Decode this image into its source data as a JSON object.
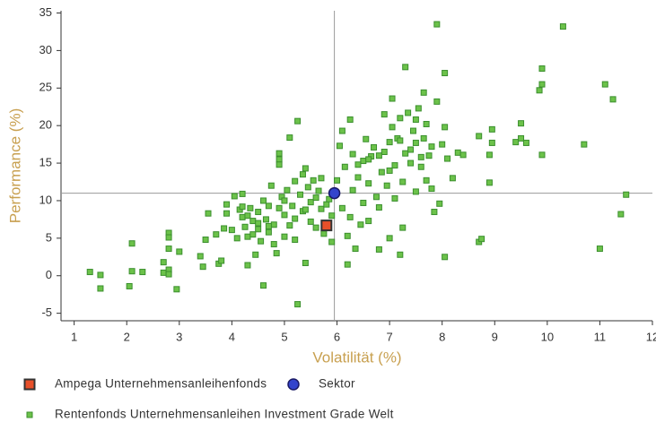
{
  "chart_data": {
    "type": "scatter",
    "x_label": "Volatilität (%)",
    "y_label": "Performance (%)",
    "xlim": [
      0.75,
      12
    ],
    "ylim": [
      -6,
      35.3
    ],
    "xticks": [
      1,
      2,
      3,
      4,
      5,
      6,
      7,
      8,
      9,
      10,
      11,
      12
    ],
    "yticks": [
      -5,
      0,
      5,
      10,
      15,
      20,
      25,
      30,
      35
    ],
    "series": [
      {
        "name": "Ampega Unternehmensanleihenfonds",
        "color": "#e8502a",
        "marker": "square",
        "x": [
          5.8
        ],
        "values": [
          6.7
        ]
      },
      {
        "name": "Sektor",
        "color": "#3344cc",
        "marker": "circle",
        "x": [
          5.95
        ],
        "values": [
          11.0
        ]
      },
      {
        "name": "Rentenfonds Unternehmensanleihen Investment Grade Welt",
        "color": "#6cc24a",
        "marker": "small-square",
        "x": [
          1.3,
          1.5,
          1.5,
          2.05,
          2.1,
          2.1,
          2.3,
          2.7,
          2.7,
          2.8,
          2.8,
          2.8,
          2.8,
          2.8,
          2.95,
          3.0,
          3.4,
          3.45,
          3.5,
          3.55,
          3.7,
          3.75,
          3.8,
          3.85,
          3.9,
          3.9,
          4.0,
          4.05,
          4.1,
          4.15,
          4.2,
          4.2,
          4.25,
          4.3,
          4.3,
          4.35,
          4.4,
          4.4,
          4.45,
          4.5,
          4.5,
          4.55,
          4.6,
          4.6,
          4.65,
          4.7,
          4.7,
          4.75,
          4.8,
          4.8,
          4.85,
          4.9,
          4.9,
          4.9,
          4.95,
          5.0,
          5.0,
          5.05,
          5.1,
          5.1,
          5.15,
          5.2,
          5.2,
          5.25,
          5.25,
          5.3,
          5.35,
          5.35,
          5.4,
          5.4,
          5.45,
          5.5,
          5.5,
          5.55,
          5.6,
          5.65,
          5.7,
          5.7,
          5.75,
          5.8,
          5.85,
          5.9,
          5.9,
          6.0,
          6.05,
          6.1,
          6.1,
          6.15,
          6.2,
          6.2,
          6.25,
          6.25,
          6.3,
          6.3,
          6.35,
          6.4,
          6.45,
          6.5,
          6.5,
          6.55,
          6.6,
          6.6,
          6.65,
          6.7,
          6.75,
          6.8,
          6.8,
          6.85,
          6.9,
          6.95,
          7.0,
          7.0,
          7.05,
          7.05,
          7.1,
          7.1,
          7.15,
          7.2,
          7.2,
          7.25,
          7.25,
          7.3,
          7.3,
          7.35,
          7.4,
          7.45,
          7.5,
          7.5,
          7.55,
          7.6,
          7.65,
          7.65,
          7.7,
          7.75,
          7.8,
          7.85,
          7.9,
          7.9,
          7.95,
          8.0,
          8.05,
          8.05,
          8.05,
          8.1,
          8.2,
          8.3,
          8.4,
          8.7,
          8.7,
          8.75,
          8.9,
          8.9,
          8.95,
          8.95,
          9.4,
          9.5,
          9.5,
          9.6,
          9.85,
          9.9,
          9.9,
          9.9,
          10.3,
          10.7,
          11.0,
          11.1,
          11.25,
          11.4,
          11.5,
          4.2,
          4.3,
          4.5,
          4.7,
          4.9,
          5.0,
          5.2,
          5.4,
          5.6,
          6.4,
          6.6,
          6.8,
          7.0,
          7.2,
          7.4,
          7.6,
          7.8,
          6.9,
          7.5,
          7.7
        ],
        "values": [
          0.5,
          0.1,
          -1.7,
          -1.4,
          4.3,
          0.6,
          0.5,
          1.8,
          0.4,
          5.7,
          5.1,
          3.6,
          0.8,
          0.2,
          -1.8,
          3.2,
          2.6,
          1.2,
          4.8,
          8.3,
          5.5,
          1.6,
          2.0,
          6.3,
          8.3,
          9.5,
          6.1,
          10.6,
          5.0,
          8.8,
          10.9,
          7.8,
          6.5,
          5.2,
          1.4,
          9.0,
          5.5,
          7.3,
          2.8,
          6.2,
          8.5,
          4.6,
          10.0,
          -1.3,
          7.5,
          5.8,
          9.3,
          12.0,
          4.2,
          6.8,
          3.0,
          16.3,
          15.5,
          14.8,
          10.5,
          8.1,
          5.2,
          11.4,
          6.7,
          18.4,
          9.3,
          4.8,
          12.6,
          20.6,
          -3.8,
          10.8,
          13.5,
          8.6,
          1.7,
          14.3,
          11.8,
          7.2,
          9.8,
          12.7,
          6.4,
          11.3,
          8.9,
          13.0,
          5.6,
          9.5,
          10.2,
          4.5,
          8.0,
          12.7,
          17.3,
          9.0,
          19.3,
          14.5,
          5.3,
          1.5,
          20.8,
          7.8,
          11.4,
          16.2,
          3.6,
          13.1,
          6.8,
          15.3,
          9.7,
          18.2,
          12.3,
          7.3,
          15.9,
          17.1,
          10.5,
          3.5,
          9.1,
          13.8,
          16.5,
          12.0,
          17.8,
          5.0,
          23.6,
          19.8,
          14.7,
          10.3,
          18.3,
          21.0,
          2.8,
          6.4,
          12.5,
          27.8,
          16.3,
          21.7,
          15.0,
          19.3,
          11.2,
          17.7,
          22.3,
          14.5,
          24.4,
          18.3,
          20.2,
          16.0,
          11.6,
          8.5,
          33.5,
          23.2,
          9.6,
          17.5,
          27.0,
          19.8,
          2.5,
          15.6,
          13.0,
          16.4,
          16.1,
          18.6,
          4.5,
          4.9,
          12.4,
          16.1,
          19.5,
          17.7,
          17.8,
          20.3,
          18.3,
          17.7,
          24.7,
          27.6,
          25.5,
          16.1,
          33.2,
          17.5,
          3.6,
          25.5,
          23.5,
          8.2,
          10.8,
          9.2,
          8.0,
          7.0,
          6.6,
          9.0,
          10.0,
          7.6,
          8.8,
          10.4,
          14.8,
          15.5,
          16.0,
          14.0,
          18.0,
          16.8,
          15.8,
          17.2,
          21.5,
          20.8,
          12.7
        ]
      }
    ]
  }
}
